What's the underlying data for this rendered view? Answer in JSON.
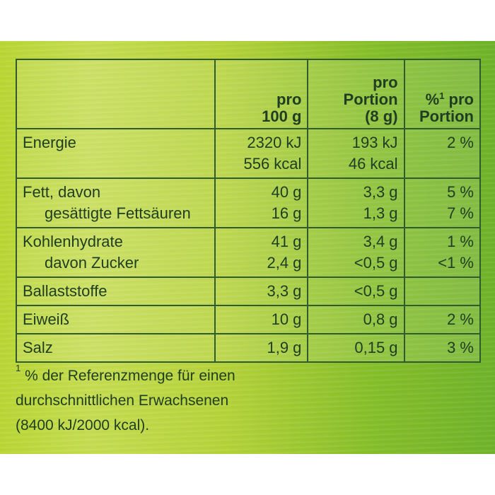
{
  "header": {
    "col1": "",
    "col2": [
      "pro",
      "100 g"
    ],
    "col3": [
      "pro",
      "Portion",
      "(8 g)"
    ],
    "col4_sup": "1",
    "col4": [
      "% pro",
      "Portion"
    ]
  },
  "rows": [
    {
      "label": [
        "Energie"
      ],
      "per100": [
        "2320 kJ",
        "556 kcal"
      ],
      "perPortion": [
        "193 kJ",
        "46 kcal"
      ],
      "percent": [
        "2 %"
      ]
    },
    {
      "label": [
        "Fett, davon",
        "gesättigte Fettsäuren"
      ],
      "per100": [
        "40 g",
        "16 g"
      ],
      "perPortion": [
        "3,3 g",
        "1,3 g"
      ],
      "percent": [
        "5 %",
        "7 %"
      ]
    },
    {
      "label": [
        "Kohlenhydrate",
        "davon Zucker"
      ],
      "per100": [
        "41 g",
        "2,4 g"
      ],
      "perPortion": [
        "3,4 g",
        "<0,5 g"
      ],
      "percent": [
        "1 %",
        "<1 %"
      ]
    },
    {
      "label": [
        "Ballaststoffe"
      ],
      "per100": [
        "3,3 g"
      ],
      "perPortion": [
        "<0,5 g"
      ],
      "percent": []
    },
    {
      "label": [
        "Eiweiß"
      ],
      "per100": [
        "10 g"
      ],
      "perPortion": [
        "0,8 g"
      ],
      "percent": [
        "2 %"
      ]
    },
    {
      "label": [
        "Salz"
      ],
      "per100": [
        "1,9 g"
      ],
      "perPortion": [
        "0,15 g"
      ],
      "percent": [
        "3 %"
      ]
    }
  ],
  "footnote": {
    "sup": "1",
    "lines": [
      " % der Referenzmenge für einen",
      "durchschnittlichen Erwachsenen",
      "(8400 kJ/2000 kcal)."
    ]
  },
  "colors": {
    "text": "#1f3d22",
    "border": "#2f5b2f",
    "bg_left": "#c6dd52",
    "bg_right": "#6fb32a"
  }
}
